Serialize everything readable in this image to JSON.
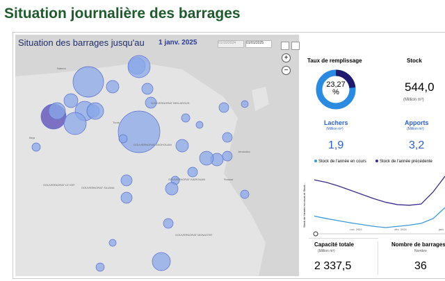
{
  "header": {
    "title": "Situation journalière des barrages"
  },
  "map": {
    "title": "Situation des barrages jusqu'au",
    "date": "1 janv. 2025",
    "date_from": "01/10/2024",
    "date_to": "01/01/2025",
    "places": [
      "GOUVERNORAT ZAGHOUAN",
      "GOUVERNORAT SILIANA",
      "GOUVERNORAT LE KEF",
      "GOUVERNORAT KAIROUAN",
      "GOUVERNORAT MONASTIR",
      "GOUVERNORAT BEN AROUS",
      "Tunis",
      "Béja",
      "Jendouba",
      "Sousse",
      "Nabeul"
    ]
  },
  "fill": {
    "title": "Taux de remplissage",
    "value": 23.27,
    "value_label": "23,27",
    "unit": "%"
  },
  "stock": {
    "title": "Stock",
    "value": "544,0",
    "unit": "(Million m³)"
  },
  "lachers": {
    "title": "Lachers",
    "unit": "(Million m³)",
    "value": "1,9"
  },
  "apports": {
    "title": "Apports",
    "unit": "(Million m³)",
    "value": "3,2"
  },
  "capacity": {
    "title": "Capacité totale",
    "unit": "(Million m³)",
    "value": "2 337,5"
  },
  "dams": {
    "title": "Nombre de barrages",
    "unit": "Nombre",
    "value": "36"
  },
  "line_chart": {
    "type": "line",
    "y_label": "Stock de l'année en cours et Stock...",
    "x_labels": [
      "nov. 2024",
      "déc. 2024",
      "janv."
    ],
    "series": [
      {
        "name": "Stock de l'année en cours",
        "color": "#3a9ad9",
        "values": [
          520,
          512,
          505,
          498,
          492,
          486,
          482,
          486,
          490,
          496,
          512,
          548
        ]
      },
      {
        "name": "Stock de l'année précédente",
        "color": "#3b2a8c",
        "values": [
          640,
          632,
          620,
          606,
          592,
          578,
          566,
          558,
          556,
          560,
          600,
          652
        ]
      }
    ]
  }
}
